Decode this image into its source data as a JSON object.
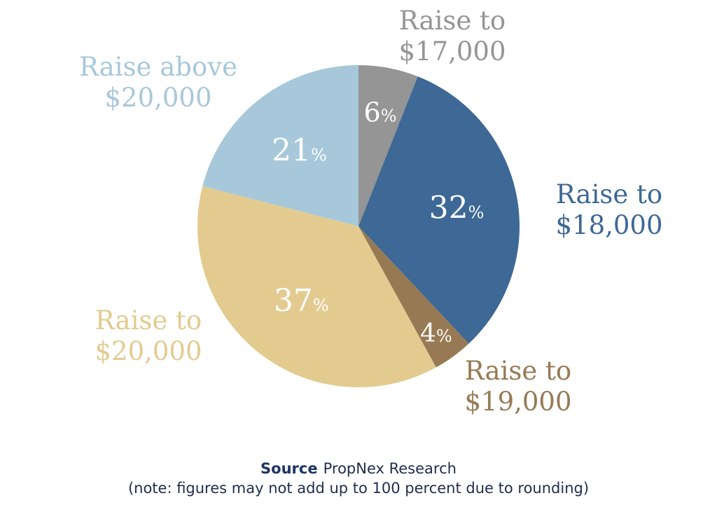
{
  "chart_data": {
    "type": "pie",
    "start": "top",
    "direction": "clockwise",
    "slices": [
      {
        "label": [
          "Raise to",
          "$17,000"
        ],
        "value": 6,
        "display": "6",
        "color": "#959595",
        "label_color": "#959595"
      },
      {
        "label": [
          "Raise to",
          "$18,000"
        ],
        "value": 32,
        "display": "32",
        "color": "#3e6895",
        "label_color": "#3e6895"
      },
      {
        "label": [
          "Raise to",
          "$19,000"
        ],
        "value": 4,
        "display": "4",
        "color": "#977a54",
        "label_color": "#977a54"
      },
      {
        "label": [
          "Raise to",
          "$20,000"
        ],
        "value": 37,
        "display": "37",
        "color": "#e3cb90",
        "label_color": "#e3cb90"
      },
      {
        "label": [
          "Raise above",
          "$20,000"
        ],
        "value": 21,
        "display": "21",
        "color": "#a7c8da",
        "label_color": "#a7c8da"
      }
    ],
    "percent_sign": "%"
  },
  "footer": {
    "source_label": "Source",
    "source_text": "PropNex Research",
    "note": "(note: figures may not add up to 100 percent due to rounding)"
  }
}
